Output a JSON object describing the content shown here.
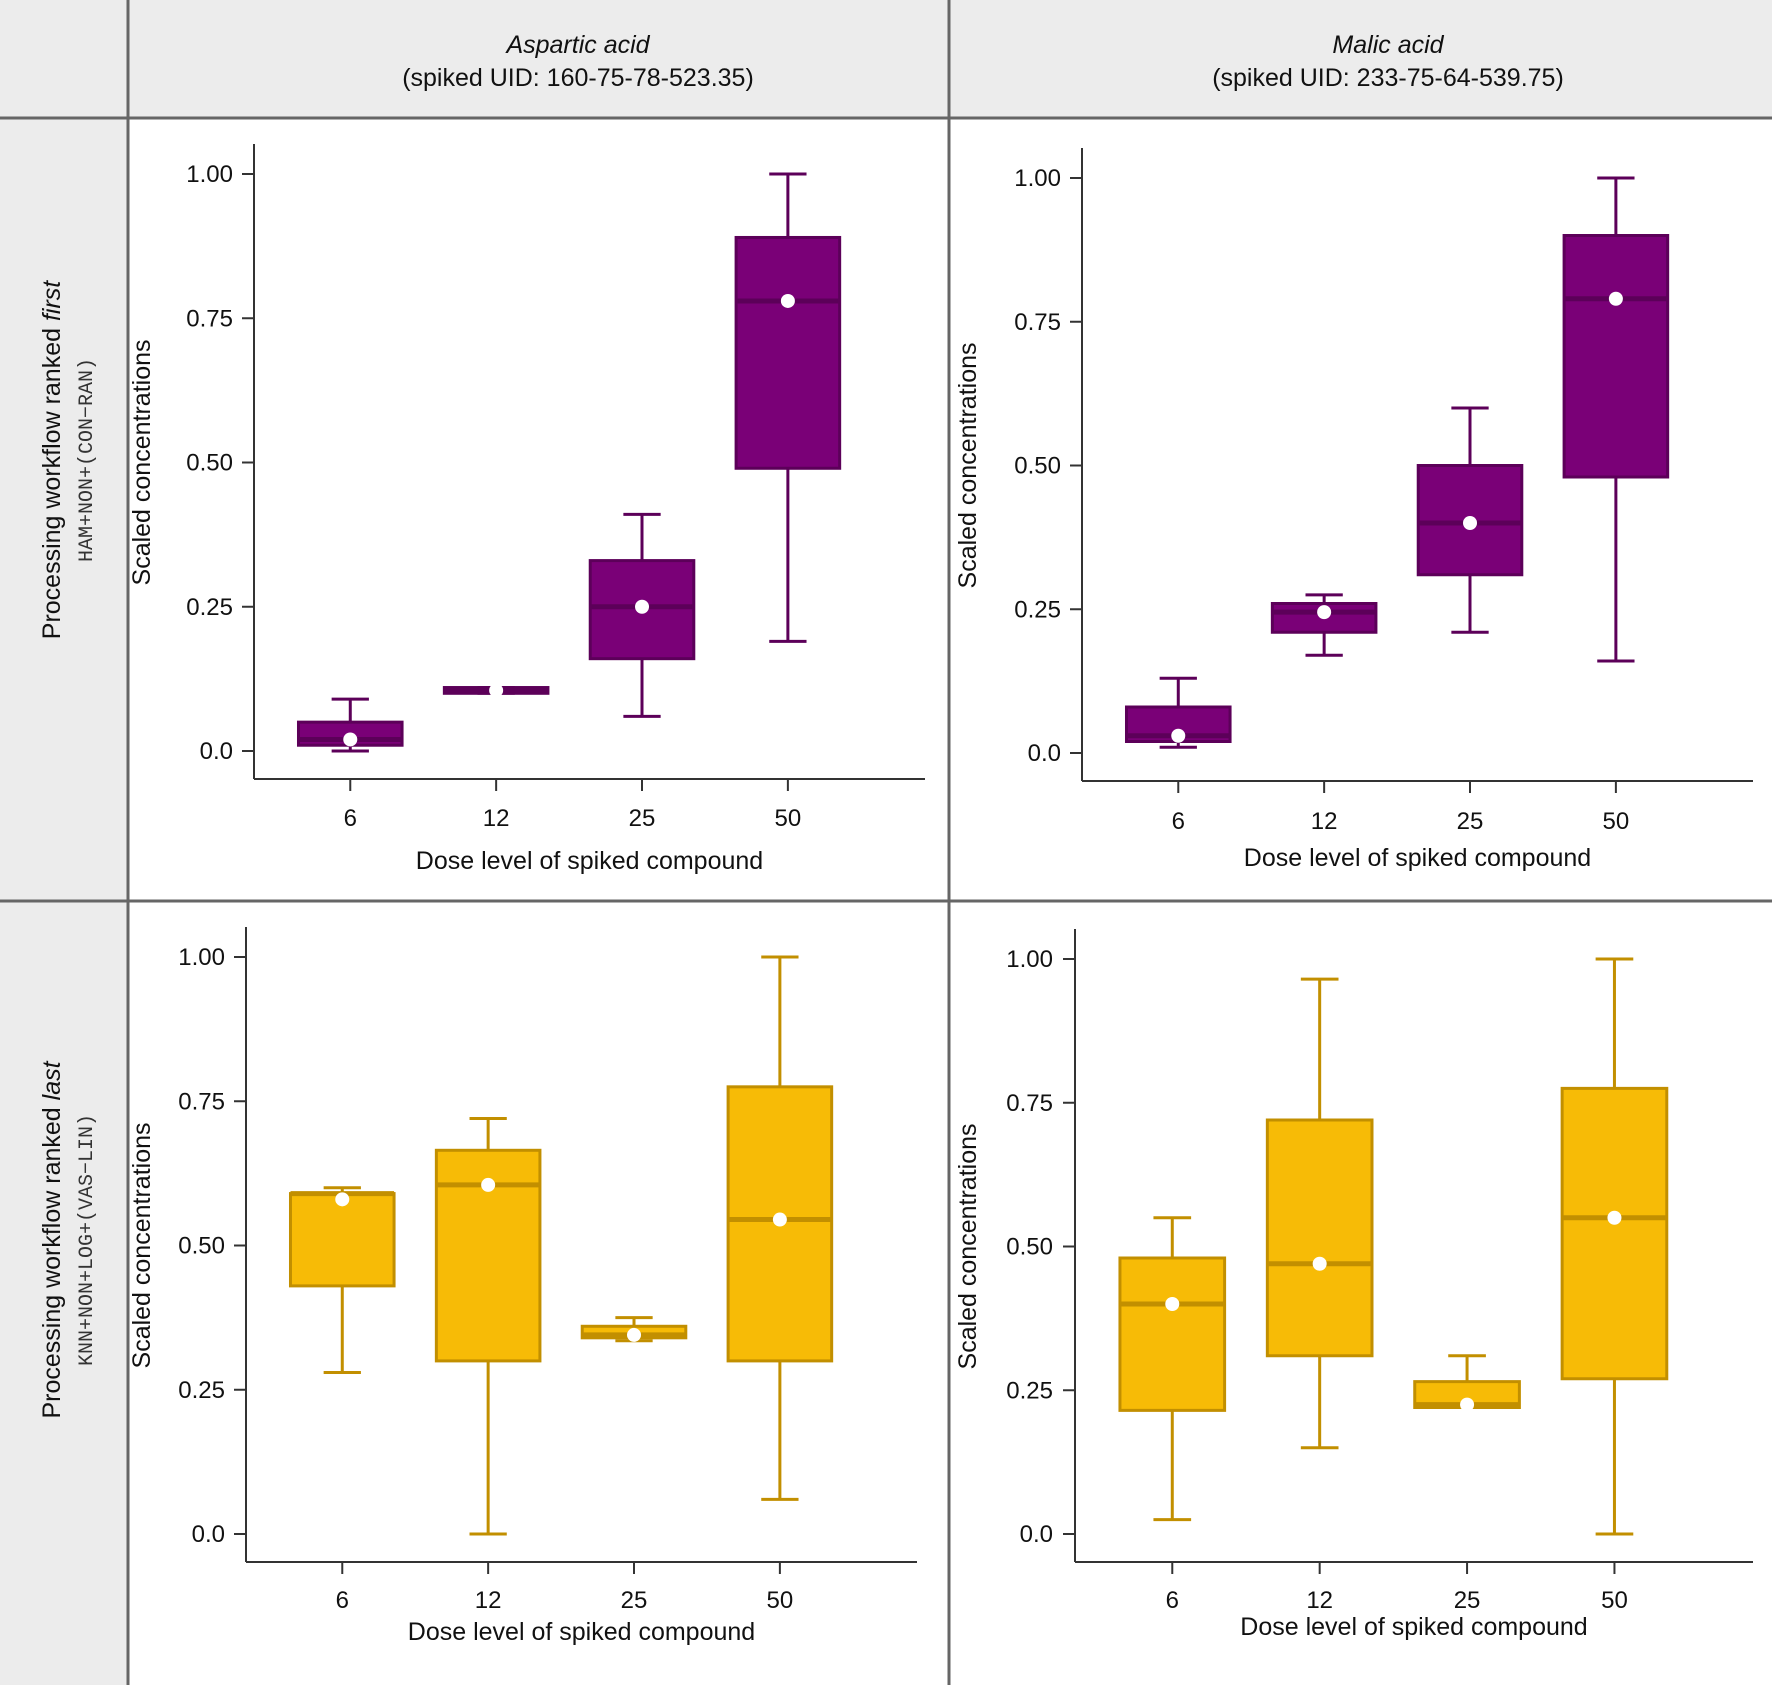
{
  "columns": [
    {
      "compound": "Aspartic acid",
      "uid": "(spiked UID: 160-75-78-523.35)"
    },
    {
      "compound": "Malic acid",
      "uid": "(spiked UID: 233-75-64-539.75)"
    }
  ],
  "rows": [
    {
      "label_prefix": "Processing workflow ranked ",
      "label_emph": "first",
      "workflow": "HAM+NON+(CON−RAN)",
      "color": "#7a0077",
      "edge": "#5c0059"
    },
    {
      "label_prefix": "Processing workflow ranked ",
      "label_emph": "last",
      "workflow": "KNN+NON+LOG+(VAS−LIN)",
      "color": "#f7bb06",
      "edge": "#c28f00"
    }
  ],
  "colors": {
    "header_bg": "#ececec",
    "grid_line": "#666666",
    "axis": "#333333",
    "mean_dot": "#ffffff"
  },
  "chart_data": [
    {
      "type": "box",
      "panel": "first-aspartic",
      "xlabel": "Dose level of spiked compound",
      "ylabel": "Scaled concentrations",
      "categories": [
        "6",
        "12",
        "25",
        "50"
      ],
      "yticks": [
        "0.0",
        "0.25",
        "0.50",
        "0.75",
        "1.00"
      ],
      "ylim": [
        0,
        1
      ],
      "boxes": [
        {
          "min": 0.0,
          "q1": 0.01,
          "median": 0.02,
          "q3": 0.05,
          "max": 0.09,
          "mean": 0.02
        },
        {
          "min": 0.1,
          "q1": 0.1,
          "median": 0.105,
          "q3": 0.11,
          "max": 0.11,
          "mean": 0.105
        },
        {
          "min": 0.06,
          "q1": 0.16,
          "median": 0.25,
          "q3": 0.33,
          "max": 0.41,
          "mean": 0.25
        },
        {
          "min": 0.19,
          "q1": 0.49,
          "median": 0.78,
          "q3": 0.89,
          "max": 1.0,
          "mean": 0.78
        }
      ]
    },
    {
      "type": "box",
      "panel": "first-malic",
      "xlabel": "Dose level of spiked compound",
      "ylabel": "Scaled concentrations",
      "categories": [
        "6",
        "12",
        "25",
        "50"
      ],
      "yticks": [
        "0.0",
        "0.25",
        "0.50",
        "0.75",
        "1.00"
      ],
      "ylim": [
        0,
        1
      ],
      "boxes": [
        {
          "min": 0.01,
          "q1": 0.02,
          "median": 0.03,
          "q3": 0.08,
          "max": 0.13,
          "mean": 0.03
        },
        {
          "min": 0.17,
          "q1": 0.21,
          "median": 0.245,
          "q3": 0.26,
          "max": 0.275,
          "mean": 0.245
        },
        {
          "min": 0.21,
          "q1": 0.31,
          "median": 0.4,
          "q3": 0.5,
          "max": 0.6,
          "mean": 0.4
        },
        {
          "min": 0.16,
          "q1": 0.48,
          "median": 0.79,
          "q3": 0.9,
          "max": 1.0,
          "mean": 0.79
        }
      ]
    },
    {
      "type": "box",
      "panel": "last-aspartic",
      "xlabel": "Dose level of spiked compound",
      "ylabel": "Scaled concentrations",
      "categories": [
        "6",
        "12",
        "25",
        "50"
      ],
      "yticks": [
        "0.0",
        "0.25",
        "0.50",
        "0.75",
        "1.00"
      ],
      "ylim": [
        0,
        1
      ],
      "boxes": [
        {
          "min": 0.28,
          "q1": 0.43,
          "median": 0.59,
          "q3": 0.59,
          "max": 0.6,
          "mean": 0.58
        },
        {
          "min": 0.0,
          "q1": 0.3,
          "median": 0.605,
          "q3": 0.665,
          "max": 0.72,
          "mean": 0.605
        },
        {
          "min": 0.335,
          "q1": 0.34,
          "median": 0.345,
          "q3": 0.36,
          "max": 0.375,
          "mean": 0.345
        },
        {
          "min": 0.06,
          "q1": 0.3,
          "median": 0.545,
          "q3": 0.775,
          "max": 1.0,
          "mean": 0.545
        }
      ]
    },
    {
      "type": "box",
      "panel": "last-malic",
      "xlabel": "Dose level of spiked compound",
      "ylabel": "Scaled concentrations",
      "categories": [
        "6",
        "12",
        "25",
        "50"
      ],
      "yticks": [
        "0.0",
        "0.25",
        "0.50",
        "0.75",
        "1.00"
      ],
      "ylim": [
        0,
        1
      ],
      "boxes": [
        {
          "min": 0.025,
          "q1": 0.215,
          "median": 0.4,
          "q3": 0.48,
          "max": 0.55,
          "mean": 0.4
        },
        {
          "min": 0.15,
          "q1": 0.31,
          "median": 0.47,
          "q3": 0.72,
          "max": 0.965,
          "mean": 0.47
        },
        {
          "min": 0.22,
          "q1": 0.22,
          "median": 0.225,
          "q3": 0.265,
          "max": 0.31,
          "mean": 0.225
        },
        {
          "min": 0.0,
          "q1": 0.27,
          "median": 0.55,
          "q3": 0.775,
          "max": 1.0,
          "mean": 0.55
        }
      ]
    }
  ]
}
